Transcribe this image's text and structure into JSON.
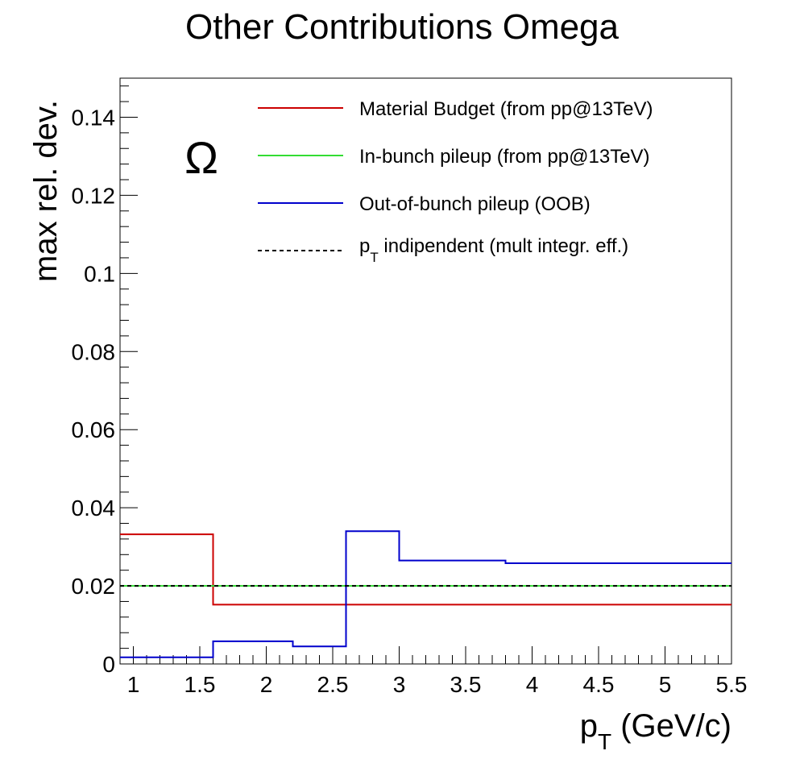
{
  "chart_data": {
    "type": "line",
    "title": "Other Contributions Omega",
    "ylabel": "max rel. dev.",
    "xlabel": {
      "main": "p",
      "sub": "T",
      "rest": " (GeV/c)"
    },
    "annotation": "Ω",
    "xlim": [
      0.9,
      5.5
    ],
    "ylim": [
      0,
      0.15
    ],
    "x_ticks": [
      1,
      1.5,
      2,
      2.5,
      3,
      3.5,
      4,
      4.5,
      5,
      5.5
    ],
    "x_tick_labels": [
      "1",
      "1.5",
      "2",
      "2.5",
      "3",
      "3.5",
      "4",
      "4.5",
      "5",
      "5.5"
    ],
    "y_ticks": [
      0,
      0.02,
      0.04,
      0.06,
      0.08,
      0.1,
      0.12,
      0.14
    ],
    "y_tick_labels": [
      "0",
      "0.02",
      "0.04",
      "0.06",
      "0.08",
      "0.1",
      "0.12",
      "0.14"
    ],
    "legend_placement": "top-right",
    "series": [
      {
        "name": "Material Budget (from pp@13TeV)",
        "color": "#cc0000",
        "style": "step",
        "bin_edges": [
          0.9,
          1.6,
          5.5
        ],
        "values": [
          0.0332,
          0.0152
        ]
      },
      {
        "name": "In-bunch pileup (from pp@13TeV)",
        "color": "#33dd33",
        "style": "step",
        "bin_edges": [
          0.9,
          5.5
        ],
        "values": [
          0.02
        ]
      },
      {
        "name": "Out-of-bunch pileup (OOB)",
        "color": "#0000cc",
        "style": "step",
        "bin_edges": [
          0.9,
          1.6,
          2.2,
          2.6,
          3.0,
          3.8,
          5.5
        ],
        "values": [
          0.0017,
          0.0058,
          0.0045,
          0.034,
          0.0265,
          0.0258
        ]
      },
      {
        "name": "p_T indipendent (mult integr. eff.)",
        "label_main": "p",
        "label_sub": "T",
        "label_rest": " indipendent (mult integr. eff.)",
        "color": "#000000",
        "style": "dashed",
        "bin_edges": [
          0.9,
          5.5
        ],
        "values": [
          0.02
        ]
      }
    ]
  }
}
